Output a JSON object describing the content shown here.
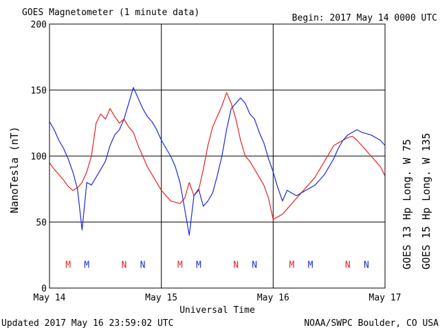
{
  "chart_data": {
    "type": "line",
    "title": "GOES Magnetometer (1 minute data)",
    "begin": "Begin:  2017 May 14 0000 UTC",
    "xlabel": "Universal Time",
    "ylabel": "NanoTesla (nT)",
    "ylim": [
      0,
      200
    ],
    "xlim": [
      0,
      72
    ],
    "x_unit": "hours since 2017 May 14 0000 UTC",
    "yticks": [
      "0",
      "50",
      "100",
      "150",
      "200"
    ],
    "xticks": [
      {
        "x": 0,
        "label": "May 14"
      },
      {
        "x": 24,
        "label": "May 15"
      },
      {
        "x": 48,
        "label": "May 16"
      },
      {
        "x": 72,
        "label": "May 17"
      }
    ],
    "grid": true,
    "series": [
      {
        "name": "GOES 13 Hp  Long. W 75",
        "color": "#e8201e",
        "x": [
          0,
          1,
          2,
          3,
          4,
          5,
          6,
          7,
          8,
          9,
          10,
          11,
          12,
          13,
          14,
          15,
          16,
          17,
          18,
          19,
          20,
          21,
          22,
          23,
          24,
          25,
          26,
          27,
          28,
          29,
          30,
          31,
          32,
          33,
          34,
          35,
          36,
          37,
          38,
          39,
          40,
          41,
          42,
          43,
          44,
          45,
          46,
          47,
          48,
          49,
          50,
          51,
          52,
          53,
          54,
          55,
          56,
          57,
          58,
          59,
          60,
          61,
          62,
          63,
          64,
          65,
          66,
          67,
          68,
          69,
          70,
          71,
          72
        ],
        "values": [
          95,
          90,
          86,
          82,
          77,
          74,
          76,
          80,
          88,
          100,
          125,
          132,
          128,
          136,
          130,
          125,
          128,
          122,
          118,
          108,
          100,
          92,
          86,
          80,
          74,
          70,
          66,
          65,
          64,
          68,
          80,
          70,
          74,
          90,
          108,
          122,
          130,
          138,
          148,
          140,
          128,
          112,
          100,
          96,
          90,
          84,
          78,
          68,
          52,
          54,
          56,
          60,
          64,
          68,
          72,
          76,
          80,
          84,
          90,
          96,
          102,
          108,
          110,
          112,
          114,
          115,
          112,
          108,
          104,
          100,
          96,
          92,
          85
        ]
      },
      {
        "name": "GOES 15 Hp  Long. W 135",
        "color": "#1a28d8",
        "x": [
          0,
          1,
          2,
          3,
          4,
          5,
          6,
          7,
          8,
          9,
          10,
          11,
          12,
          13,
          14,
          15,
          16,
          17,
          18,
          19,
          20,
          21,
          22,
          23,
          24,
          25,
          26,
          27,
          28,
          29,
          30,
          31,
          32,
          33,
          34,
          35,
          36,
          37,
          38,
          39,
          40,
          41,
          42,
          43,
          44,
          45,
          46,
          47,
          48,
          49,
          50,
          51,
          52,
          53,
          54,
          55,
          56,
          57,
          58,
          59,
          60,
          61,
          62,
          63,
          64,
          65,
          66,
          67,
          68,
          69,
          70,
          71,
          72
        ],
        "values": [
          126,
          120,
          112,
          106,
          98,
          88,
          75,
          44,
          80,
          78,
          84,
          90,
          96,
          108,
          116,
          120,
          128,
          140,
          152,
          144,
          136,
          130,
          126,
          120,
          112,
          106,
          100,
          92,
          80,
          60,
          40,
          70,
          75,
          62,
          66,
          72,
          85,
          100,
          120,
          136,
          140,
          144,
          140,
          132,
          128,
          118,
          110,
          98,
          88,
          76,
          66,
          74,
          72,
          70,
          72,
          74,
          76,
          78,
          82,
          86,
          92,
          98,
          106,
          112,
          116,
          118,
          120,
          118,
          117,
          116,
          114,
          112,
          108
        ]
      }
    ],
    "event_markers": {
      "y": 18,
      "items": [
        {
          "x": 4,
          "label": "M",
          "color": "#e8201e"
        },
        {
          "x": 8,
          "label": "M",
          "color": "#1a28d8"
        },
        {
          "x": 16,
          "label": "N",
          "color": "#e8201e"
        },
        {
          "x": 20,
          "label": "N",
          "color": "#1a28d8"
        },
        {
          "x": 28,
          "label": "M",
          "color": "#e8201e"
        },
        {
          "x": 32,
          "label": "M",
          "color": "#1a28d8"
        },
        {
          "x": 40,
          "label": "N",
          "color": "#e8201e"
        },
        {
          "x": 44,
          "label": "N",
          "color": "#1a28d8"
        },
        {
          "x": 52,
          "label": "M",
          "color": "#e8201e"
        },
        {
          "x": 56,
          "label": "M",
          "color": "#1a28d8"
        },
        {
          "x": 64,
          "label": "N",
          "color": "#e8201e"
        },
        {
          "x": 68,
          "label": "N",
          "color": "#1a28d8"
        }
      ]
    },
    "legend_placement": "right (rotated)"
  },
  "footer": {
    "updated": "Updated 2017 May 16 23:59:02 UTC",
    "source": "NOAA/SWPC Boulder, CO USA"
  }
}
